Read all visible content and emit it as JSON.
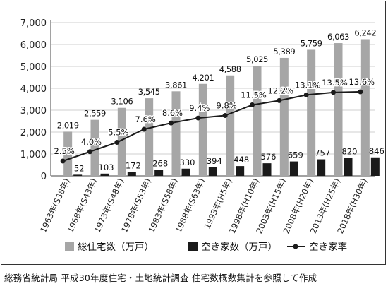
{
  "chart_data": {
    "type": "bar",
    "categories": [
      "1963年(S38年)",
      "1968年(S43年)",
      "1973年(S48年)",
      "1978年(S53年)",
      "1983年(S58年)",
      "1988年(S63年)",
      "1993年(H5年)",
      "1998年(H10年)",
      "2003年(H15年)",
      "2008年(H20年)",
      "2013年(H25年)",
      "2018年(H30年)"
    ],
    "series": [
      {
        "name": "総住宅数（万戸）",
        "type": "bar",
        "color": "#a6a6a6",
        "values": [
          2019,
          2559,
          3106,
          3545,
          3861,
          4201,
          4588,
          5025,
          5389,
          5759,
          6063,
          6242
        ],
        "labels": [
          "2,019",
          "2,559",
          "3,106",
          "3,545",
          "3,861",
          "4,201",
          "4,588",
          "5,025",
          "5,389",
          "5,759",
          "6,063",
          "6,242"
        ]
      },
      {
        "name": "空き家数（万戸）",
        "type": "bar",
        "color": "#1a1a1a",
        "values": [
          52,
          103,
          172,
          268,
          330,
          394,
          448,
          576,
          659,
          757,
          820,
          846
        ],
        "labels": [
          "52",
          "103",
          "172",
          "268",
          "330",
          "394",
          "448",
          "576",
          "659",
          "757",
          "820",
          "846"
        ]
      },
      {
        "name": "空き家率",
        "type": "line",
        "color": "#1a1a1a",
        "values": [
          2.5,
          4.0,
          5.5,
          7.6,
          8.6,
          9.4,
          9.8,
          11.5,
          12.2,
          13.1,
          13.5,
          13.6
        ],
        "labels": [
          "2.5%",
          "4.0%",
          "5.5%",
          "7.6%",
          "8.6%",
          "9.4%",
          "9.8%",
          "11.5%",
          "12.2%",
          "13.1%",
          "13.5%",
          "13.6%"
        ]
      }
    ],
    "y_ticks": [
      "0",
      "1,000",
      "2,000",
      "3,000",
      "4,000",
      "5,000",
      "6,000",
      "7,000"
    ],
    "ylim": [
      0,
      7000
    ],
    "grid": true,
    "legend": "bottom"
  },
  "source": "総務省統計局 平成30年度住宅・土地統計調査 住宅数概数集計を参照して作成"
}
